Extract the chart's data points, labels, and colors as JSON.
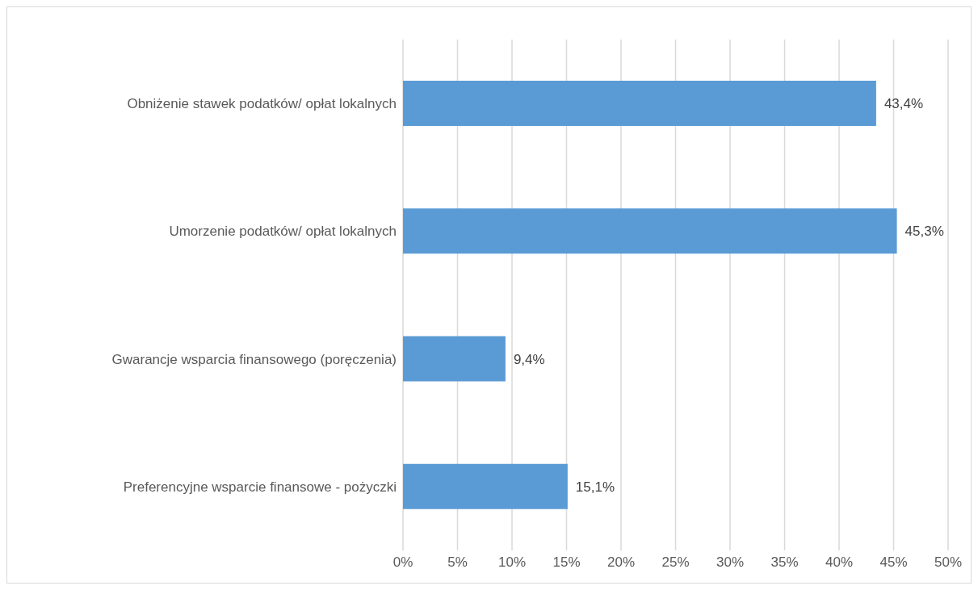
{
  "chart_data": {
    "type": "bar",
    "orientation": "horizontal",
    "categories": [
      "Obniżenie stawek podatków/ opłat lokalnych",
      "Umorzenie podatków/ opłat lokalnych",
      "Gwarancje wsparcia finansowego (poręczenia)",
      "Preferencyjne wsparcie finansowe - pożyczki"
    ],
    "values": [
      43.4,
      45.3,
      9.4,
      15.1
    ],
    "value_labels": [
      "43,4%",
      "45,3%",
      "9,4%",
      "15,1%"
    ],
    "color": "#5b9bd5",
    "xlim": [
      0,
      50
    ],
    "xticks": [
      {
        "value": 0,
        "label": "0%"
      },
      {
        "value": 5,
        "label": "5%"
      },
      {
        "value": 10,
        "label": "10%"
      },
      {
        "value": 15,
        "label": "15%"
      },
      {
        "value": 20,
        "label": "20%"
      },
      {
        "value": 25,
        "label": "25%"
      },
      {
        "value": 30,
        "label": "30%"
      },
      {
        "value": 35,
        "label": "35%"
      },
      {
        "value": 40,
        "label": "40%"
      },
      {
        "value": 45,
        "label": "45%"
      },
      {
        "value": 50,
        "label": "50%"
      }
    ],
    "grid": "x"
  }
}
